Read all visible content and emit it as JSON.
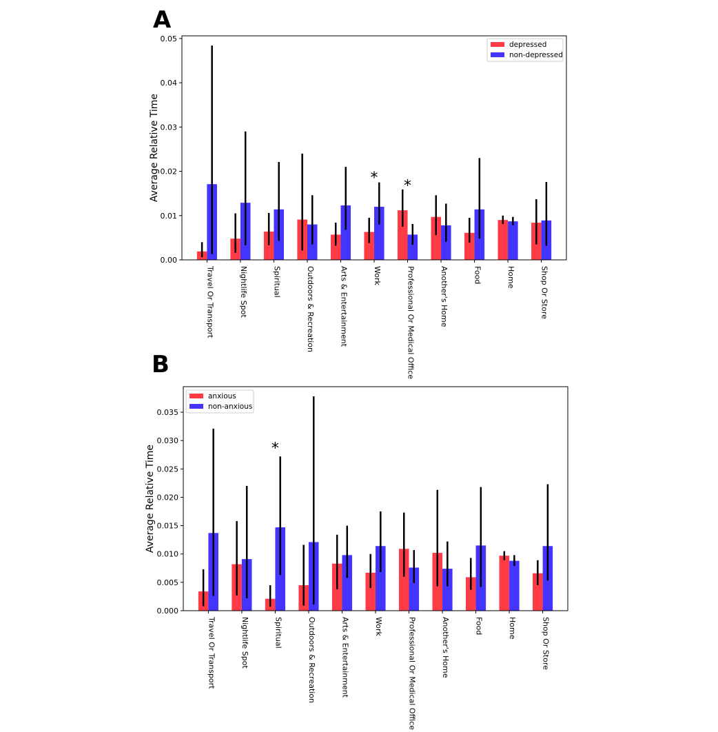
{
  "colors": {
    "group1": "#ff3b45",
    "group2": "#4335ff",
    "error": "#000000",
    "axis": "#000000"
  },
  "chart_data": [
    {
      "panel": "A",
      "type": "bar",
      "title": "",
      "xlabel": "",
      "ylabel": "Average Relative Time",
      "ylim": [
        0,
        0.0506
      ],
      "yticks": [
        "0.00",
        "0.01",
        "0.02",
        "0.03",
        "0.04",
        "0.05"
      ],
      "ytick_values": [
        0,
        0.01,
        0.02,
        0.03,
        0.04,
        0.05
      ],
      "grid": false,
      "legend": "top-right",
      "categories": [
        "Travel Or Transport",
        "Nightlife Spot",
        "Spiritual",
        "Outdoors & Recreation",
        "Arts & Entertainment",
        "Work",
        "Professional Or Medical Office",
        "Another's Home",
        "Food",
        "Home",
        "Shop Or Store"
      ],
      "series": [
        {
          "name": "depressed",
          "color": "#ff3b45",
          "values": [
            0.0019,
            0.0048,
            0.0064,
            0.0091,
            0.0057,
            0.0063,
            0.0112,
            0.0097,
            0.0061,
            0.009,
            0.0084
          ],
          "err_low": [
            0.0006,
            0.0016,
            0.0033,
            0.0021,
            0.0032,
            0.0038,
            0.0075,
            0.0056,
            0.0039,
            0.0081,
            0.0035
          ],
          "err_high": [
            0.004,
            0.0105,
            0.0106,
            0.024,
            0.0084,
            0.0095,
            0.0159,
            0.0146,
            0.0095,
            0.01,
            0.0137
          ]
        },
        {
          "name": "non-depressed",
          "color": "#4335ff",
          "values": [
            0.0171,
            0.0129,
            0.0114,
            0.008,
            0.0123,
            0.012,
            0.0057,
            0.0078,
            0.0114,
            0.0087,
            0.0089
          ],
          "err_low": [
            0.0013,
            0.0033,
            0.0043,
            0.0035,
            0.0068,
            0.008,
            0.0034,
            0.0041,
            0.0048,
            0.0078,
            0.0032
          ],
          "err_high": [
            0.0484,
            0.029,
            0.0221,
            0.0146,
            0.021,
            0.0175,
            0.0081,
            0.0127,
            0.023,
            0.0097,
            0.0176
          ]
        }
      ],
      "significance": [
        {
          "category": "Work",
          "marker": "*",
          "y": 0.019
        },
        {
          "category": "Professional Or Medical Office",
          "marker": "*",
          "y": 0.0172
        }
      ]
    },
    {
      "panel": "B",
      "type": "bar",
      "title": "",
      "xlabel": "",
      "ylabel": "Average Relative Time",
      "ylim": [
        0,
        0.0395
      ],
      "yticks": [
        "0.000",
        "0.005",
        "0.010",
        "0.015",
        "0.020",
        "0.025",
        "0.030",
        "0.035"
      ],
      "ytick_values": [
        0,
        0.005,
        0.01,
        0.015,
        0.02,
        0.025,
        0.03,
        0.035
      ],
      "grid": false,
      "legend": "top-left",
      "categories": [
        "Travel Or Transport",
        "Nightlife Spot",
        "Spiritual",
        "Outdoors & Recreation",
        "Arts & Entertainment",
        "Work",
        "Professional Or Medical Office",
        "Another's Home",
        "Food",
        "Home",
        "Shop Or Store"
      ],
      "series": [
        {
          "name": "anxious",
          "color": "#ff3b45",
          "values": [
            0.0034,
            0.0082,
            0.0021,
            0.0045,
            0.0083,
            0.0067,
            0.0109,
            0.0102,
            0.0059,
            0.0097,
            0.0066
          ],
          "err_low": [
            0.0008,
            0.0027,
            0.0007,
            0.0009,
            0.0038,
            0.004,
            0.006,
            0.0043,
            0.0037,
            0.0089,
            0.0045
          ],
          "err_high": [
            0.0073,
            0.0158,
            0.0045,
            0.0116,
            0.0134,
            0.01,
            0.0173,
            0.0213,
            0.0093,
            0.0105,
            0.0089
          ]
        },
        {
          "name": "non-anxious",
          "color": "#4335ff",
          "values": [
            0.0137,
            0.0091,
            0.0147,
            0.0121,
            0.0098,
            0.0114,
            0.0076,
            0.0074,
            0.0115,
            0.0088,
            0.0114
          ],
          "err_low": [
            0.0026,
            0.0022,
            0.0063,
            0.0011,
            0.0058,
            0.0068,
            0.0049,
            0.0043,
            0.0042,
            0.0079,
            0.0053
          ],
          "err_high": [
            0.0321,
            0.022,
            0.0272,
            0.0378,
            0.015,
            0.0175,
            0.0107,
            0.0122,
            0.0218,
            0.0098,
            0.0223
          ]
        }
      ],
      "significance": [
        {
          "category": "Spiritual",
          "marker": "*",
          "y": 0.029
        }
      ]
    }
  ]
}
